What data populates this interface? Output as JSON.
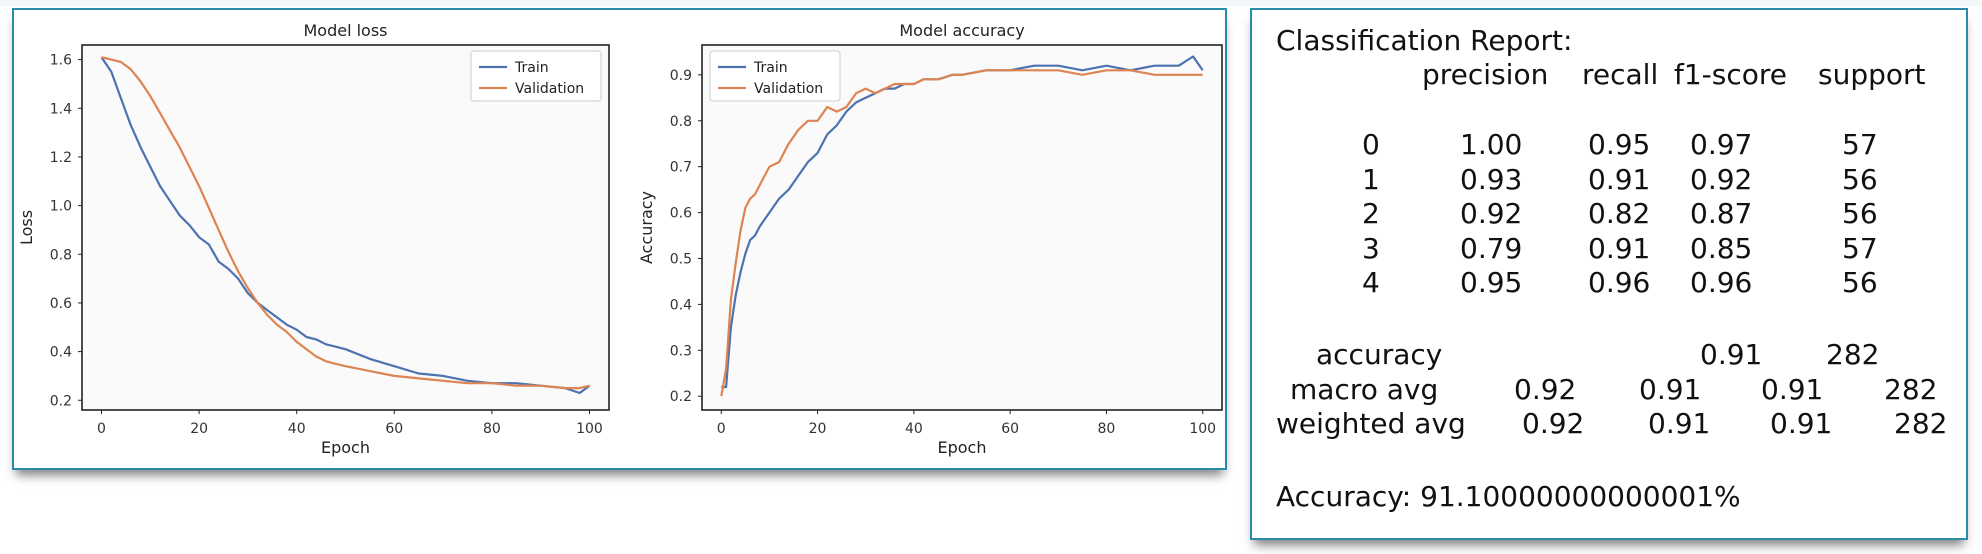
{
  "chart_data": [
    {
      "type": "line",
      "title": "Model loss",
      "xlabel": "Epoch",
      "ylabel": "Loss",
      "xlim": [
        -4,
        104
      ],
      "ylim": [
        0.16,
        1.66
      ],
      "xticks": [
        "0",
        "20",
        "40",
        "60",
        "80",
        "100"
      ],
      "yticks": [
        "0.2",
        "0.4",
        "0.6",
        "0.8",
        "1.0",
        "1.2",
        "1.4",
        "1.6"
      ],
      "legend": "top-right",
      "grid": false,
      "series": [
        {
          "name": "Train",
          "color": "#4c72b0",
          "x": [
            0,
            2,
            4,
            6,
            8,
            10,
            12,
            14,
            16,
            18,
            20,
            22,
            24,
            26,
            28,
            30,
            32,
            34,
            36,
            38,
            40,
            42,
            44,
            46,
            48,
            50,
            55,
            60,
            65,
            70,
            75,
            80,
            85,
            90,
            95,
            98,
            100
          ],
          "values": [
            1.61,
            1.55,
            1.44,
            1.33,
            1.24,
            1.16,
            1.08,
            1.02,
            0.96,
            0.92,
            0.87,
            0.84,
            0.77,
            0.74,
            0.7,
            0.64,
            0.6,
            0.57,
            0.54,
            0.51,
            0.49,
            0.46,
            0.45,
            0.43,
            0.42,
            0.41,
            0.37,
            0.34,
            0.31,
            0.3,
            0.28,
            0.27,
            0.27,
            0.26,
            0.25,
            0.23,
            0.26
          ]
        },
        {
          "name": "Validation",
          "color": "#dd8452",
          "x": [
            0,
            2,
            4,
            6,
            8,
            10,
            12,
            14,
            16,
            18,
            20,
            22,
            24,
            26,
            28,
            30,
            32,
            34,
            36,
            38,
            40,
            42,
            44,
            46,
            48,
            50,
            55,
            60,
            65,
            70,
            75,
            80,
            85,
            90,
            95,
            98,
            100
          ],
          "values": [
            1.61,
            1.6,
            1.59,
            1.56,
            1.51,
            1.45,
            1.38,
            1.31,
            1.24,
            1.16,
            1.08,
            0.99,
            0.9,
            0.81,
            0.73,
            0.66,
            0.6,
            0.55,
            0.51,
            0.48,
            0.44,
            0.41,
            0.38,
            0.36,
            0.35,
            0.34,
            0.32,
            0.3,
            0.29,
            0.28,
            0.27,
            0.27,
            0.26,
            0.26,
            0.25,
            0.25,
            0.26
          ]
        }
      ]
    },
    {
      "type": "line",
      "title": "Model accuracy",
      "xlabel": "Epoch",
      "ylabel": "Accuracy",
      "xlim": [
        -4,
        104
      ],
      "ylim": [
        0.17,
        0.965
      ],
      "xticks": [
        "0",
        "20",
        "40",
        "60",
        "80",
        "100"
      ],
      "yticks": [
        "0.2",
        "0.3",
        "0.4",
        "0.5",
        "0.6",
        "0.7",
        "0.8",
        "0.9"
      ],
      "legend": "top-left",
      "grid": false,
      "series": [
        {
          "name": "Train",
          "color": "#4c72b0",
          "x": [
            0,
            1,
            2,
            3,
            4,
            5,
            6,
            7,
            8,
            10,
            12,
            14,
            16,
            18,
            20,
            22,
            24,
            26,
            28,
            30,
            32,
            34,
            36,
            38,
            40,
            42,
            45,
            48,
            50,
            55,
            60,
            65,
            70,
            75,
            80,
            85,
            90,
            95,
            98,
            100
          ],
          "values": [
            0.22,
            0.22,
            0.35,
            0.42,
            0.47,
            0.51,
            0.54,
            0.55,
            0.57,
            0.6,
            0.63,
            0.65,
            0.68,
            0.71,
            0.73,
            0.77,
            0.79,
            0.82,
            0.84,
            0.85,
            0.86,
            0.87,
            0.87,
            0.88,
            0.88,
            0.89,
            0.89,
            0.9,
            0.9,
            0.91,
            0.91,
            0.92,
            0.92,
            0.91,
            0.92,
            0.91,
            0.92,
            0.92,
            0.94,
            0.91
          ]
        },
        {
          "name": "Validation",
          "color": "#dd8452",
          "x": [
            0,
            1,
            2,
            3,
            4,
            5,
            6,
            7,
            8,
            10,
            12,
            14,
            16,
            18,
            20,
            22,
            24,
            26,
            28,
            30,
            32,
            34,
            36,
            38,
            40,
            42,
            45,
            48,
            50,
            55,
            60,
            65,
            70,
            75,
            80,
            85,
            90,
            95,
            98,
            100
          ],
          "values": [
            0.2,
            0.26,
            0.41,
            0.49,
            0.56,
            0.61,
            0.63,
            0.64,
            0.66,
            0.7,
            0.71,
            0.75,
            0.78,
            0.8,
            0.8,
            0.83,
            0.82,
            0.83,
            0.86,
            0.87,
            0.86,
            0.87,
            0.88,
            0.88,
            0.88,
            0.89,
            0.89,
            0.9,
            0.9,
            0.91,
            0.91,
            0.91,
            0.91,
            0.9,
            0.91,
            0.91,
            0.9,
            0.9,
            0.9,
            0.9
          ]
        }
      ]
    }
  ],
  "report": {
    "title": "Classification Report:",
    "headers": [
      "precision",
      "recall",
      "f1-score",
      "support"
    ],
    "rows": [
      {
        "label": "0",
        "precision": "1.00",
        "recall": "0.95",
        "f1": "0.97",
        "support": "57"
      },
      {
        "label": "1",
        "precision": "0.93",
        "recall": "0.91",
        "f1": "0.92",
        "support": "56"
      },
      {
        "label": "2",
        "precision": "0.92",
        "recall": "0.82",
        "f1": "0.87",
        "support": "56"
      },
      {
        "label": "3",
        "precision": "0.79",
        "recall": "0.91",
        "f1": "0.85",
        "support": "57"
      },
      {
        "label": "4",
        "precision": "0.95",
        "recall": "0.96",
        "f1": "0.96",
        "support": "56"
      }
    ],
    "accuracy_row": {
      "label": "accuracy",
      "f1": "0.91",
      "support": "282"
    },
    "macro_row": {
      "label": "macro avg",
      "precision": "0.92",
      "recall": "0.91",
      "f1": "0.91",
      "support": "282"
    },
    "weighted_row": {
      "label": "weighted avg",
      "precision": "0.92",
      "recall": "0.91",
      "f1": "0.91",
      "support": "282"
    },
    "accuracy_line": "Accuracy: 91.10000000000001%"
  },
  "colors": {
    "border": "#2a8ca8",
    "plot_bg": "#fafafa",
    "train": "#4c72b0",
    "validation": "#dd8452"
  }
}
